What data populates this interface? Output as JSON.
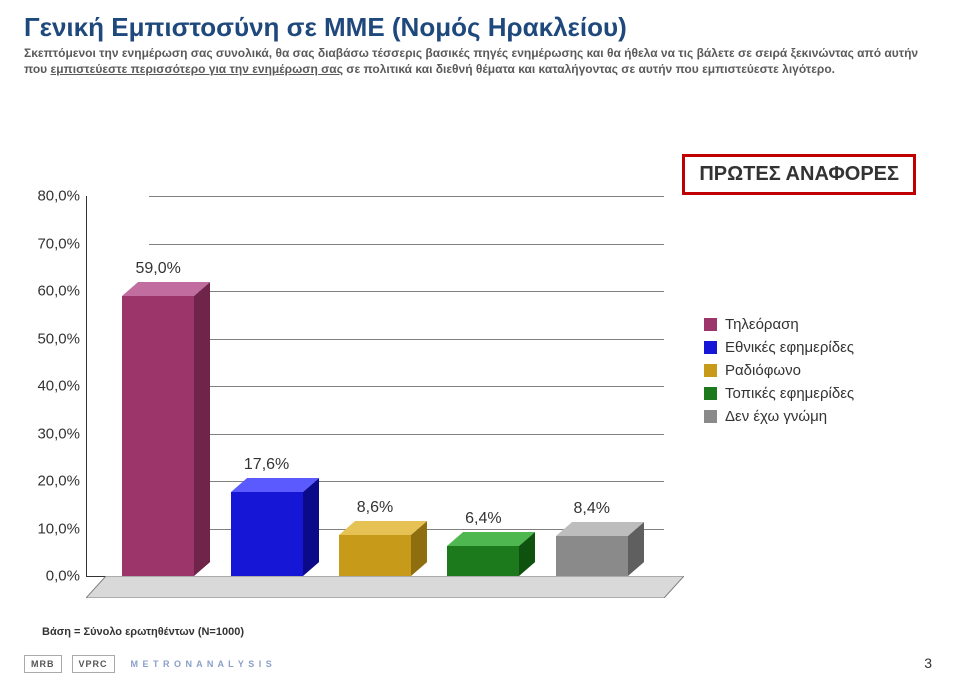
{
  "title": "Γενική Εμπιστοσύνη σε ΜΜΕ (Νομός Ηρακλείου)",
  "subtitle_pre": "Σκεπτόμενοι την ενημέρωση σας συνολικά, θα σας διαβάσω τέσσερις βασικές πηγές ενημέρωσης και θα ήθελα να τις βάλετε σε σειρά ξεκινώντας από αυτήν που ",
  "subtitle_u1": "εμπιστεύεστε περισσότερο για την ενημέρωση σας",
  "subtitle_mid": " σε πολιτικά και διεθνή θέματα και καταλήγοντας σε αυτήν που εμπιστεύεστε λιγότερο.",
  "callout": "ΠΡΩΤΕΣ ΑΝΑΦΟΡΕΣ",
  "chart": {
    "type": "bar",
    "y_ticks": [
      "0,0%",
      "10,0%",
      "20,0%",
      "30,0%",
      "40,0%",
      "50,0%",
      "60,0%",
      "70,0%",
      "80,0%"
    ],
    "ymax": 80,
    "bars": [
      {
        "label": "59,0%",
        "value": 59.0,
        "front": "#9c3569",
        "top": "#c26da0",
        "side": "#6f2549"
      },
      {
        "label": "17,6%",
        "value": 17.6,
        "front": "#1616d6",
        "top": "#5a5aff",
        "side": "#0b0b8a"
      },
      {
        "label": "8,6%",
        "value": 8.6,
        "front": "#c89a1a",
        "top": "#e6c255",
        "side": "#8f6e10"
      },
      {
        "label": "6,4%",
        "value": 6.4,
        "front": "#1c7a1c",
        "top": "#4fb74f",
        "side": "#0f520f"
      },
      {
        "label": "8,4%",
        "value": 8.4,
        "front": "#8a8a8a",
        "top": "#bdbdbd",
        "side": "#5f5f5f"
      }
    ],
    "legend": [
      {
        "label": "Τηλεόραση",
        "color": "#9c3569"
      },
      {
        "label": "Εθνικές εφημερίδες",
        "color": "#1616d6"
      },
      {
        "label": "Ραδιόφωνο",
        "color": "#c89a1a"
      },
      {
        "label": "Τοπικές εφημερίδες",
        "color": "#1c7a1c"
      },
      {
        "label": "Δεν έχω γνώμη",
        "color": "#8a8a8a"
      }
    ],
    "grid_color": "#808080",
    "floor_fill": "#d9d9d9",
    "floor_stroke": "#808080"
  },
  "base_note": "Βάση = Σύνολο ερωτηθέντων (Ν=1000)",
  "logos": [
    "MRB",
    "VPRC",
    "M E T R O N A N A L Y S I S"
  ],
  "page_number": "3"
}
